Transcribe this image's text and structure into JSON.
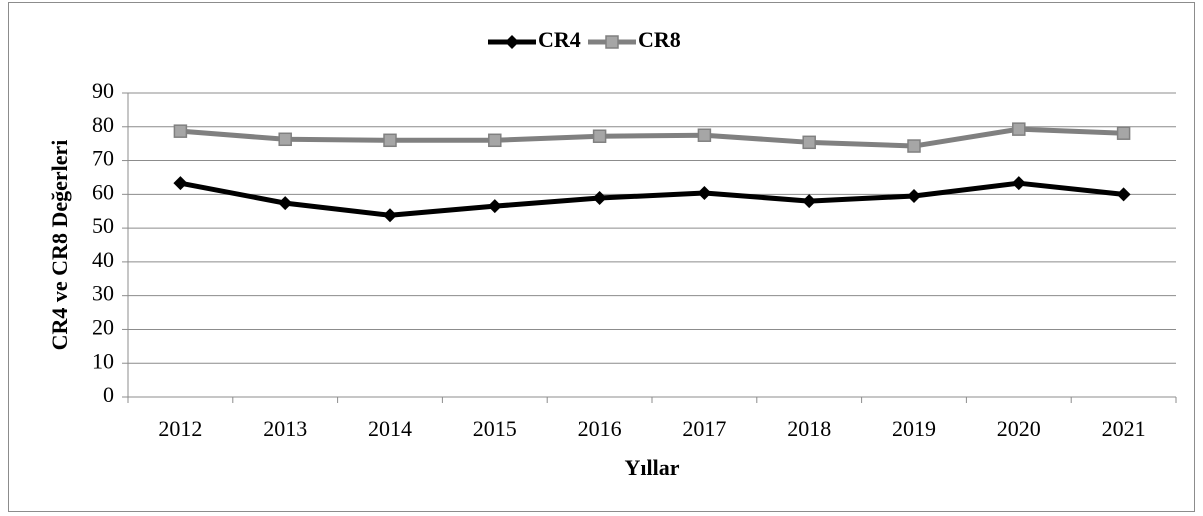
{
  "chart_data": {
    "type": "line",
    "xlabel": "Yıllar",
    "ylabel": "CR4 ve CR8 Değerleri",
    "categories": [
      "2012",
      "2013",
      "2014",
      "2015",
      "2016",
      "2017",
      "2018",
      "2019",
      "2020",
      "2021"
    ],
    "series": [
      {
        "name": "CR4",
        "color": "#000000",
        "marker": "diamond",
        "values": [
          63.3,
          57.4,
          53.8,
          56.5,
          58.9,
          60.4,
          58.0,
          59.5,
          63.3,
          60.0
        ]
      },
      {
        "name": "CR8",
        "color": "#808080",
        "marker": "square",
        "values": [
          78.7,
          76.3,
          76.0,
          76.0,
          77.2,
          77.5,
          75.4,
          74.3,
          79.3,
          78.1
        ]
      }
    ],
    "ylim": [
      0,
      90
    ],
    "yticks": [
      0,
      10,
      20,
      30,
      40,
      50,
      60,
      70,
      80,
      90
    ],
    "grid": true,
    "legend": "top"
  }
}
